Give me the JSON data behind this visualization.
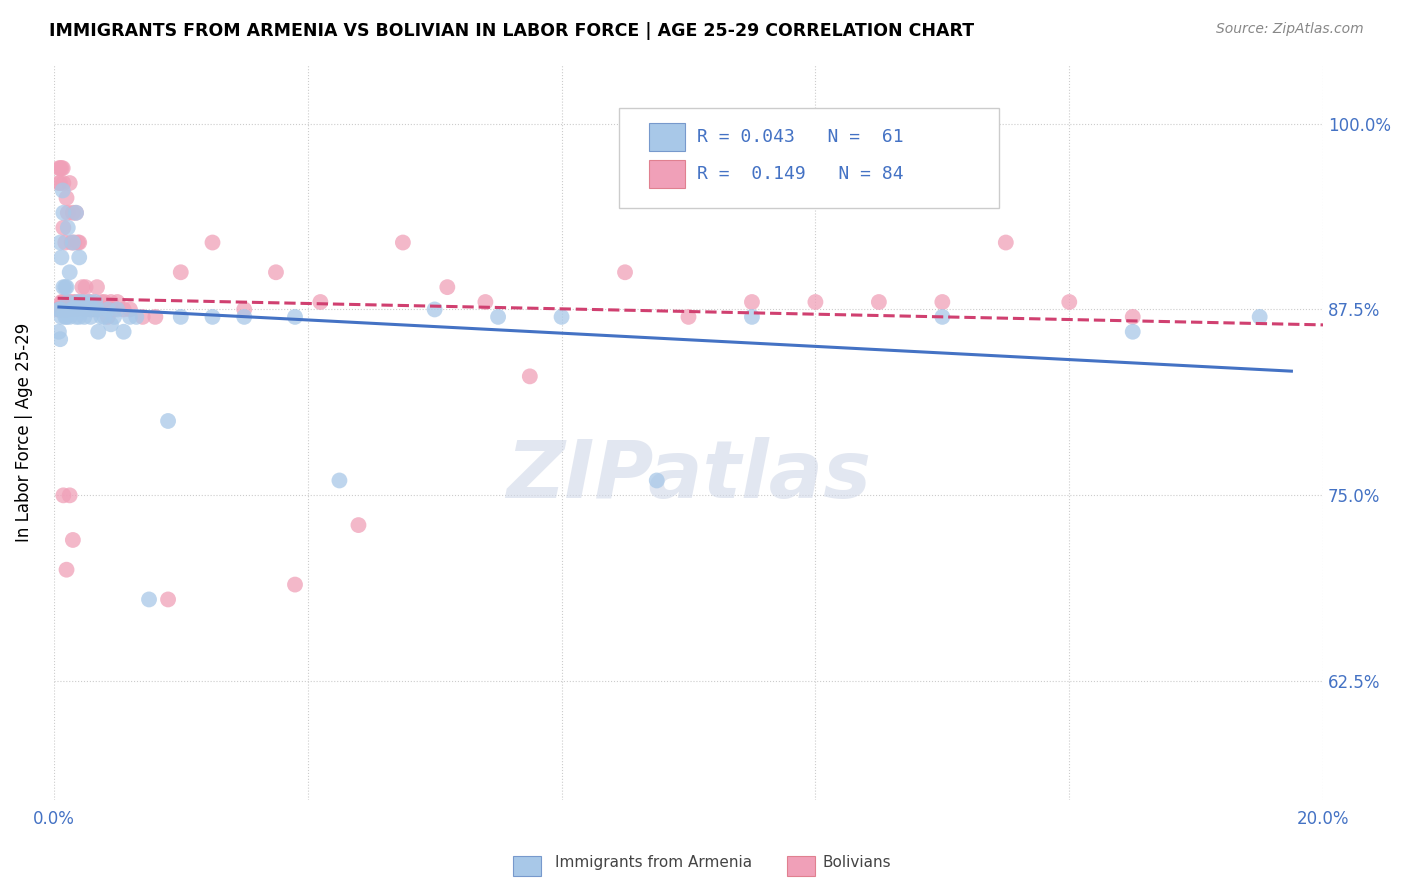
{
  "title": "IMMIGRANTS FROM ARMENIA VS BOLIVIAN IN LABOR FORCE | AGE 25-29 CORRELATION CHART",
  "source": "Source: ZipAtlas.com",
  "ylabel": "In Labor Force | Age 25-29",
  "ytick_labels": [
    "100.0%",
    "87.5%",
    "75.0%",
    "62.5%"
  ],
  "ytick_values": [
    1.0,
    0.875,
    0.75,
    0.625
  ],
  "xlim": [
    0.0,
    0.2
  ],
  "ylim": [
    0.545,
    1.04
  ],
  "legend_text_1": "R = 0.043   N =  61",
  "legend_text_2": "R =  0.149   N = 84",
  "color_armenia": "#a8c8e8",
  "color_bolivia": "#f0a0b8",
  "line_color_armenia": "#4472c4",
  "line_color_bolivia": "#d04070",
  "armenia_x": [
    0.0008,
    0.0008,
    0.001,
    0.001,
    0.001,
    0.0012,
    0.0012,
    0.0014,
    0.0015,
    0.0015,
    0.0018,
    0.0018,
    0.002,
    0.002,
    0.0022,
    0.0022,
    0.0025,
    0.0025,
    0.0028,
    0.003,
    0.003,
    0.0032,
    0.0035,
    0.0035,
    0.0038,
    0.004,
    0.004,
    0.0042,
    0.0045,
    0.0048,
    0.005,
    0.0055,
    0.0058,
    0.006,
    0.0065,
    0.0068,
    0.007,
    0.0075,
    0.008,
    0.0085,
    0.009,
    0.0095,
    0.01,
    0.011,
    0.012,
    0.013,
    0.015,
    0.018,
    0.02,
    0.025,
    0.03,
    0.038,
    0.045,
    0.06,
    0.07,
    0.08,
    0.095,
    0.11,
    0.14,
    0.17,
    0.19
  ],
  "armenia_y": [
    0.875,
    0.86,
    0.92,
    0.875,
    0.855,
    0.91,
    0.87,
    0.955,
    0.94,
    0.89,
    0.89,
    0.87,
    0.89,
    0.87,
    0.93,
    0.88,
    0.9,
    0.87,
    0.875,
    0.92,
    0.875,
    0.875,
    0.94,
    0.87,
    0.88,
    0.91,
    0.87,
    0.875,
    0.88,
    0.87,
    0.875,
    0.88,
    0.87,
    0.875,
    0.88,
    0.875,
    0.86,
    0.87,
    0.87,
    0.875,
    0.865,
    0.87,
    0.875,
    0.86,
    0.87,
    0.87,
    0.68,
    0.8,
    0.87,
    0.87,
    0.87,
    0.87,
    0.76,
    0.875,
    0.87,
    0.87,
    0.76,
    0.87,
    0.87,
    0.86,
    0.87
  ],
  "bolivia_x": [
    0.0006,
    0.0008,
    0.0008,
    0.001,
    0.001,
    0.001,
    0.0012,
    0.0012,
    0.0014,
    0.0014,
    0.0015,
    0.0015,
    0.0015,
    0.0018,
    0.0018,
    0.002,
    0.002,
    0.0022,
    0.0022,
    0.0025,
    0.0025,
    0.0028,
    0.003,
    0.003,
    0.0032,
    0.0035,
    0.0035,
    0.0038,
    0.004,
    0.0042,
    0.0045,
    0.0048,
    0.005,
    0.0055,
    0.0058,
    0.006,
    0.0065,
    0.0068,
    0.007,
    0.0075,
    0.008,
    0.0085,
    0.009,
    0.0095,
    0.01,
    0.011,
    0.012,
    0.014,
    0.016,
    0.018,
    0.02,
    0.025,
    0.03,
    0.035,
    0.038,
    0.042,
    0.048,
    0.055,
    0.062,
    0.068,
    0.075,
    0.09,
    0.1,
    0.11,
    0.12,
    0.13,
    0.14,
    0.15,
    0.16,
    0.17,
    0.0015,
    0.0012,
    0.002,
    0.0025,
    0.001,
    0.0008,
    0.0018,
    0.0022,
    0.003,
    0.0035,
    0.0015,
    0.002,
    0.0025,
    0.003
  ],
  "bolivia_y": [
    0.875,
    0.97,
    0.96,
    0.97,
    0.96,
    0.875,
    0.97,
    0.88,
    0.97,
    0.88,
    0.96,
    0.93,
    0.875,
    0.92,
    0.875,
    0.95,
    0.875,
    0.94,
    0.88,
    0.96,
    0.88,
    0.92,
    0.94,
    0.88,
    0.92,
    0.94,
    0.88,
    0.92,
    0.92,
    0.88,
    0.89,
    0.875,
    0.89,
    0.88,
    0.875,
    0.88,
    0.875,
    0.89,
    0.875,
    0.88,
    0.88,
    0.87,
    0.88,
    0.875,
    0.88,
    0.875,
    0.875,
    0.87,
    0.87,
    0.68,
    0.9,
    0.92,
    0.875,
    0.9,
    0.69,
    0.88,
    0.73,
    0.92,
    0.89,
    0.88,
    0.83,
    0.9,
    0.87,
    0.88,
    0.88,
    0.88,
    0.88,
    0.92,
    0.88,
    0.87,
    0.875,
    0.875,
    0.875,
    0.875,
    0.875,
    0.875,
    0.875,
    0.875,
    0.875,
    0.875,
    0.75,
    0.7,
    0.75,
    0.72
  ]
}
